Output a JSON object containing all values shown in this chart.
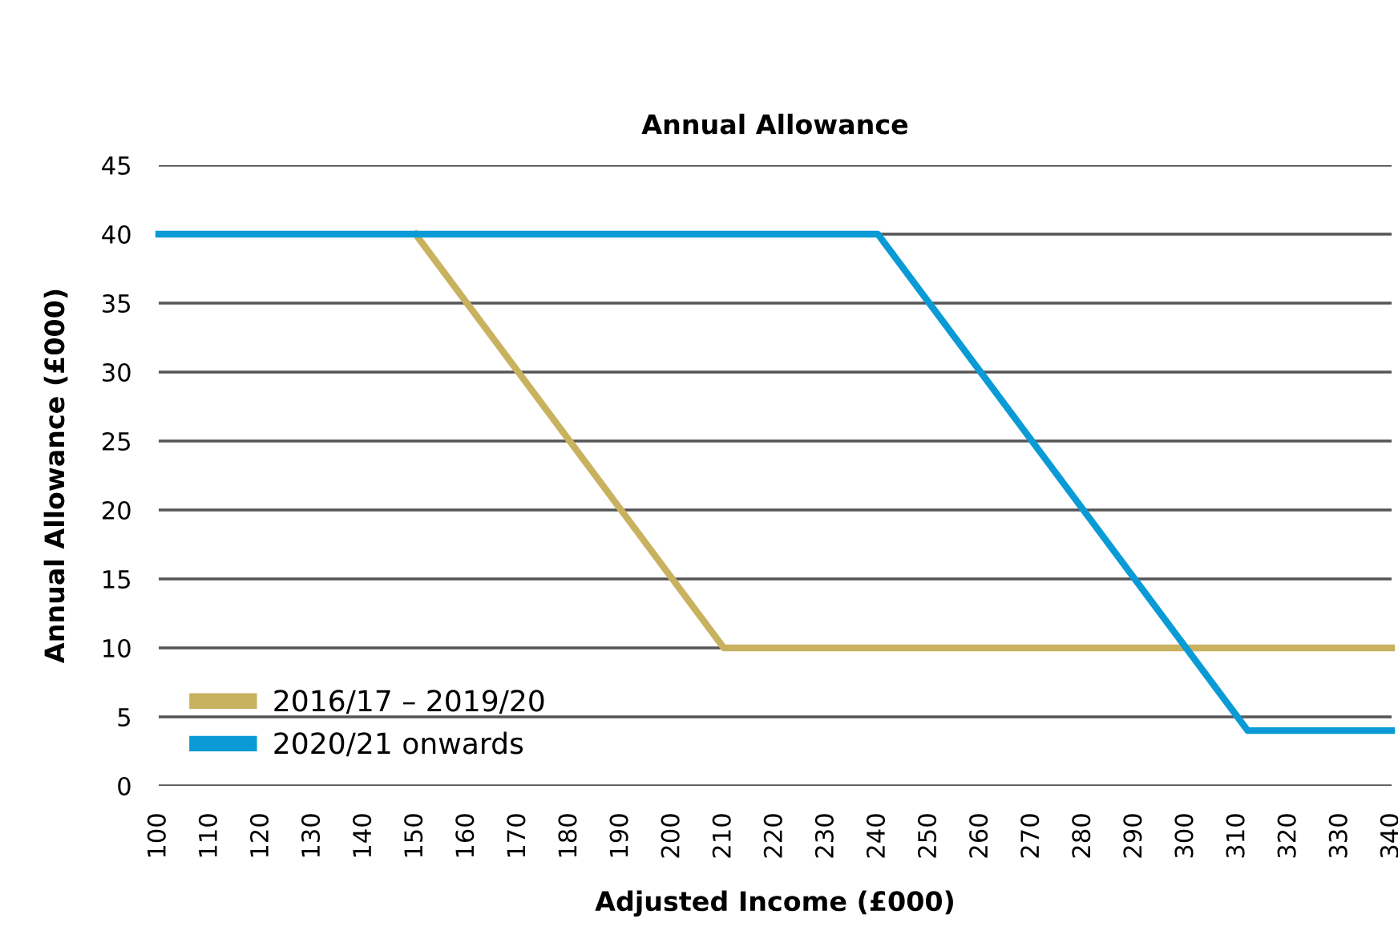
{
  "chart_data": {
    "type": "line",
    "title": "Annual Allowance",
    "xlabel": "Adjusted Income (£000)",
    "ylabel": "Annual Allowance (£000)",
    "series": [
      {
        "name": "2016/17 – 2019/20",
        "color": "#c9b25f",
        "x": [
          150,
          210,
          340
        ],
        "values": [
          40,
          10,
          10
        ]
      },
      {
        "name": "2020/21 onwards",
        "color": "#0a9bd6",
        "x": [
          100,
          240,
          312,
          340
        ],
        "values": [
          40,
          40,
          4,
          4
        ]
      }
    ],
    "xlim": [
      100,
      340
    ],
    "xticks": [
      100,
      110,
      120,
      130,
      140,
      150,
      160,
      170,
      180,
      190,
      200,
      210,
      220,
      230,
      240,
      250,
      260,
      270,
      280,
      290,
      300,
      310,
      320,
      330,
      340
    ],
    "ylim": [
      0,
      45
    ],
    "yticks": [
      0,
      5,
      10,
      15,
      20,
      25,
      30,
      35,
      40,
      45
    ],
    "grid": "y",
    "legend": "bottom left",
    "marker": "none",
    "line_style": "solid"
  }
}
